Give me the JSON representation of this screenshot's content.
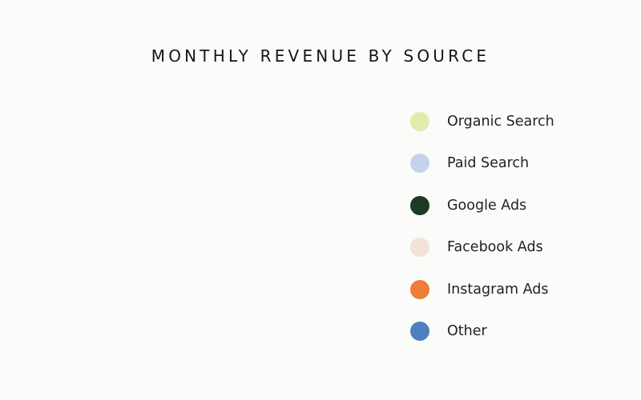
{
  "chart_data": {
    "type": "pie",
    "title": "MONTHLY REVENUE BY SOURCE",
    "legend_position": "right",
    "series": [
      {
        "name": "Organic Search",
        "color": "#e2eba9"
      },
      {
        "name": "Paid Search",
        "color": "#c5d3ea"
      },
      {
        "name": "Google Ads",
        "color": "#1d3a24"
      },
      {
        "name": "Facebook Ads",
        "color": "#f3e2d9"
      },
      {
        "name": "Instagram Ads",
        "color": "#ee7d38"
      },
      {
        "name": "Other",
        "color": "#4f7fc1"
      }
    ]
  }
}
